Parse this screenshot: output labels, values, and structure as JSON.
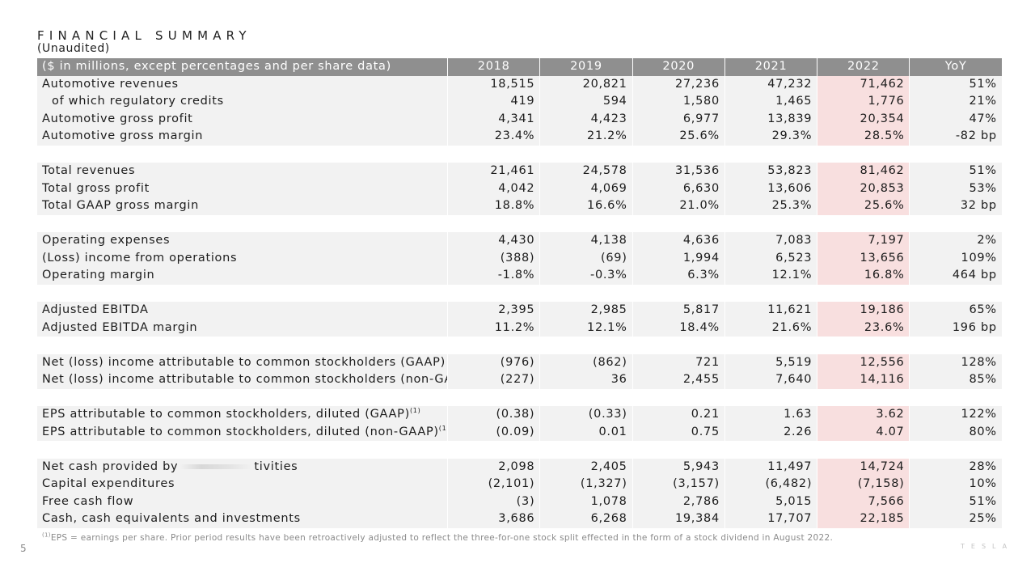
{
  "page": {
    "title": "FINANCIAL SUMMARY",
    "subtitle": "(Unaudited)",
    "page_number": "5",
    "logo_text": "TESLA",
    "footnote_marker": "(1)",
    "footnote_text": "EPS = earnings per share. Prior period results have been retroactively adjusted to reflect the three-for-one stock split effected in the form of a stock dividend in August 2022."
  },
  "table": {
    "header": {
      "label": "($ in millions, except percentages and per share data)",
      "columns": [
        "2018",
        "2019",
        "2020",
        "2021",
        "2022",
        "YoY"
      ]
    },
    "rows": [
      {
        "label": "Automotive revenues",
        "values": [
          "18,515",
          "20,821",
          "27,236",
          "47,232",
          "71,462",
          "51%"
        ]
      },
      {
        "label": "of which regulatory credits",
        "values": [
          "419",
          "594",
          "1,580",
          "1,465",
          "1,776",
          "21%"
        ]
      },
      {
        "label": "Automotive gross profit",
        "values": [
          "4,341",
          "4,423",
          "6,977",
          "13,839",
          "20,354",
          "47%"
        ]
      },
      {
        "label": "Automotive gross margin",
        "values": [
          "23.4%",
          "21.2%",
          "25.6%",
          "29.3%",
          "28.5%",
          "-82 bp"
        ]
      },
      {
        "label": "Total revenues",
        "values": [
          "21,461",
          "24,578",
          "31,536",
          "53,823",
          "81,462",
          "51%"
        ]
      },
      {
        "label": "Total gross profit",
        "values": [
          "4,042",
          "4,069",
          "6,630",
          "13,606",
          "20,853",
          "53%"
        ]
      },
      {
        "label": "Total GAAP gross margin",
        "values": [
          "18.8%",
          "16.6%",
          "21.0%",
          "25.3%",
          "25.6%",
          "32 bp"
        ]
      },
      {
        "label": "Operating expenses",
        "values": [
          "4,430",
          "4,138",
          "4,636",
          "7,083",
          "7,197",
          "2%"
        ]
      },
      {
        "label": "(Loss) income from operations",
        "values": [
          "(388)",
          "(69)",
          "1,994",
          "6,523",
          "13,656",
          "109%"
        ]
      },
      {
        "label": "Operating margin",
        "values": [
          "-1.8%",
          "-0.3%",
          "6.3%",
          "12.1%",
          "16.8%",
          "464 bp"
        ]
      },
      {
        "label": "Adjusted EBITDA",
        "values": [
          "2,395",
          "2,985",
          "5,817",
          "11,621",
          "19,186",
          "65%"
        ]
      },
      {
        "label": "Adjusted EBITDA margin",
        "values": [
          "11.2%",
          "12.1%",
          "18.4%",
          "21.6%",
          "23.6%",
          "196 bp"
        ]
      },
      {
        "label": "Net (loss) income attributable to common stockholders (GAAP)",
        "values": [
          "(976)",
          "(862)",
          "721",
          "5,519",
          "12,556",
          "128%"
        ]
      },
      {
        "label": "Net (loss) income attributable to common stockholders (non-GAAP)",
        "values": [
          "(227)",
          "36",
          "2,455",
          "7,640",
          "14,116",
          "85%"
        ]
      },
      {
        "label": "EPS attributable to common stockholders, diluted (GAAP)",
        "values": [
          "(0.38)",
          "(0.33)",
          "0.21",
          "1.63",
          "3.62",
          "122%"
        ]
      },
      {
        "label": "EPS attributable to common stockholders, diluted (non-GAAP)",
        "values": [
          "(0.09)",
          "0.01",
          "0.75",
          "2.26",
          "4.07",
          "80%"
        ]
      },
      {
        "label_start": "Net cash provided by",
        "label_end": "tivities",
        "values": [
          "2,098",
          "2,405",
          "5,943",
          "11,497",
          "14,724",
          "28%"
        ]
      },
      {
        "label": "Capital expenditures",
        "values": [
          "(2,101)",
          "(1,327)",
          "(3,157)",
          "(6,482)",
          "(7,158)",
          "10%"
        ]
      },
      {
        "label": "Free cash flow",
        "values": [
          "(3)",
          "1,078",
          "2,786",
          "5,015",
          "7,566",
          "51%"
        ]
      },
      {
        "label": "Cash, cash equivalents and investments",
        "values": [
          "3,686",
          "6,268",
          "19,384",
          "17,707",
          "22,185",
          "25%"
        ]
      }
    ],
    "superscript": "(1)"
  },
  "colors": {
    "header_bg": "#8f8f8f",
    "row_bg": "#f2f2f2",
    "highlight_2022": "#f8dfdf"
  }
}
